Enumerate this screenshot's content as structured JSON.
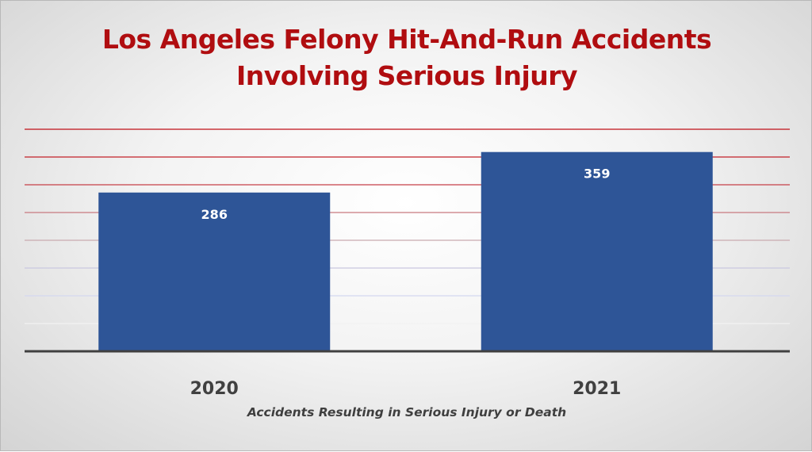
{
  "chart_data": {
    "type": "bar",
    "title_lines": [
      "Los Angeles Felony Hit-And-Run Accidents",
      "Involving Serious Injury"
    ],
    "categories": [
      "2020",
      "2021"
    ],
    "values": [
      286,
      359
    ],
    "data_labels": [
      "286",
      "359"
    ],
    "xlabel": "Accidents Resulting in Serious Injury or Death",
    "ylabel": "",
    "ylim": [
      0,
      400
    ],
    "grid": true,
    "legend": "none",
    "colors": {
      "bar": "#2e5597",
      "title": "#b00d10",
      "axis": "#404040",
      "gridlines": [
        "#f2f2f2",
        "#d4d8f0",
        "#c9c8e0",
        "#c9aab0",
        "#c87a80",
        "#c64048",
        "#c32028",
        "#c01018"
      ]
    }
  }
}
